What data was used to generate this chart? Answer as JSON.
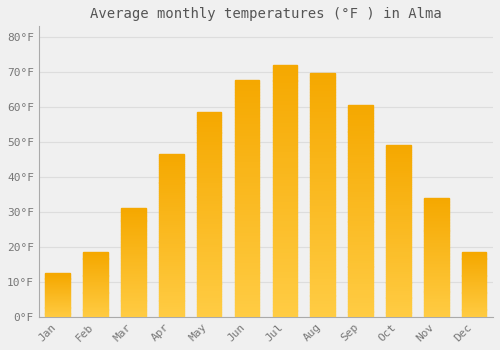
{
  "title": "Average monthly temperatures (°F ) in Alma",
  "months": [
    "Jan",
    "Feb",
    "Mar",
    "Apr",
    "May",
    "Jun",
    "Jul",
    "Aug",
    "Sep",
    "Oct",
    "Nov",
    "Dec"
  ],
  "values": [
    12.5,
    18.5,
    31.0,
    46.5,
    58.5,
    67.5,
    72.0,
    69.5,
    60.5,
    49.0,
    34.0,
    18.5
  ],
  "bar_color_top": "#F5A800",
  "bar_color_bottom": "#FFCC44",
  "background_color": "#f0f0f0",
  "plot_bg_color": "#f0f0f0",
  "grid_color": "#dddddd",
  "text_color": "#777777",
  "ylim": [
    0,
    83
  ],
  "yticks": [
    0,
    10,
    20,
    30,
    40,
    50,
    60,
    70,
    80
  ],
  "title_fontsize": 10,
  "tick_fontsize": 8,
  "bar_width": 0.65
}
